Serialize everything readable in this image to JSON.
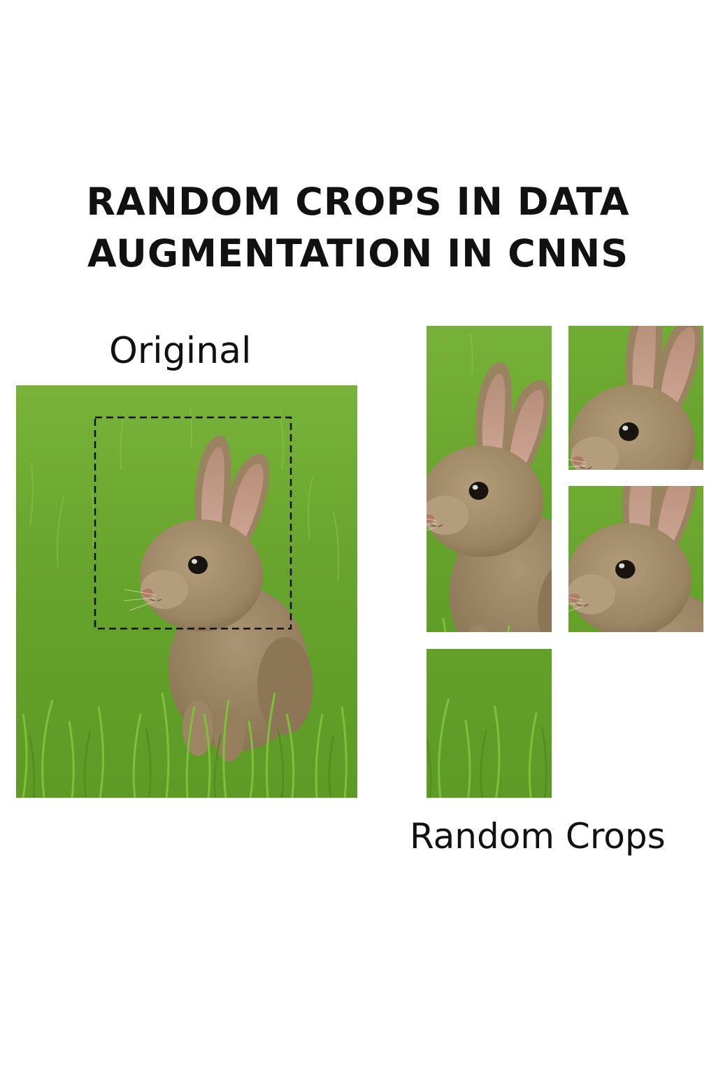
{
  "title": {
    "line1": "RANDOM CROPS IN DATA",
    "line2": "AUGMENTATION IN CNNS"
  },
  "labels": {
    "original": "Original",
    "random_crops": "Random Crops"
  },
  "images": {
    "subject": "rabbit-in-grass",
    "crop_count": 4
  },
  "colors": {
    "grass": "#6aa52e",
    "grass_dark": "#4f8a1f",
    "grass_light": "#8cc44a",
    "fur": "#a08a68",
    "fur_dark": "#7c684b",
    "ear_inner": "#c99a8a",
    "crop_box": "#111111"
  }
}
